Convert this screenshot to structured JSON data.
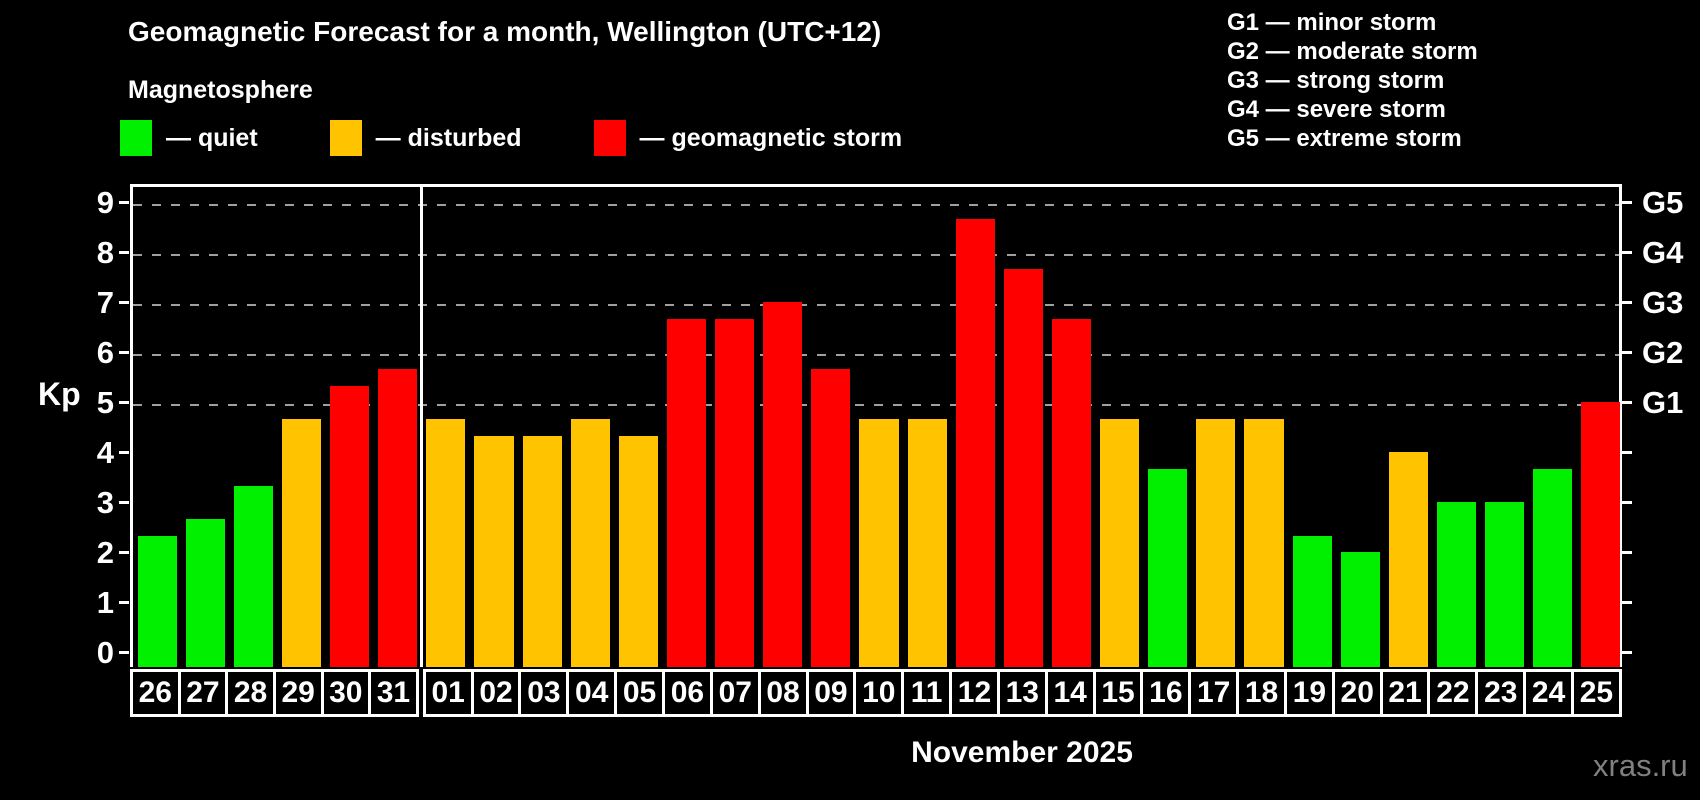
{
  "chart_data": {
    "type": "bar",
    "title": "Geomagnetic Forecast for a month, Wellington (UTC+12)",
    "subtitle": "Magnetosphere",
    "ylabel": "Kp",
    "month_label": "November 2025",
    "watermark": "xras.ru",
    "ylim": [
      0,
      9
    ],
    "yticks": [
      0,
      1,
      2,
      3,
      4,
      5,
      6,
      7,
      8,
      9
    ],
    "grid_levels": [
      5,
      6,
      7,
      8,
      9
    ],
    "grid_style": "dashed",
    "right_axis_labels": [
      {
        "kp": 5,
        "label": "G1"
      },
      {
        "kp": 6,
        "label": "G2"
      },
      {
        "kp": 7,
        "label": "G3"
      },
      {
        "kp": 8,
        "label": "G4"
      },
      {
        "kp": 9,
        "label": "G5"
      }
    ],
    "g_legend": [
      "G1 — minor storm",
      "G2 — moderate storm",
      "G3 — strong storm",
      "G4 — severe storm",
      "G5 — extreme storm"
    ],
    "legend": [
      {
        "status": "quiet",
        "label": "— quiet"
      },
      {
        "status": "disturbed",
        "label": "— disturbed"
      },
      {
        "status": "storm",
        "label": "— geomagnetic storm"
      }
    ],
    "colors": {
      "quiet": "#00f000",
      "disturbed": "#ffc300",
      "storm": "#ff0000",
      "grid": "#a0a0a0",
      "frame": "#ffffff",
      "watermark": "#808080"
    },
    "month_boundary_after_day": "31",
    "days": [
      {
        "day": "26",
        "kp": 2.33,
        "status": "quiet"
      },
      {
        "day": "27",
        "kp": 2.67,
        "status": "quiet"
      },
      {
        "day": "28",
        "kp": 3.33,
        "status": "quiet"
      },
      {
        "day": "29",
        "kp": 4.67,
        "status": "disturbed"
      },
      {
        "day": "30",
        "kp": 5.33,
        "status": "storm"
      },
      {
        "day": "31",
        "kp": 5.67,
        "status": "storm"
      },
      {
        "day": "01",
        "kp": 4.67,
        "status": "disturbed"
      },
      {
        "day": "02",
        "kp": 4.33,
        "status": "disturbed"
      },
      {
        "day": "03",
        "kp": 4.33,
        "status": "disturbed"
      },
      {
        "day": "04",
        "kp": 4.67,
        "status": "disturbed"
      },
      {
        "day": "05",
        "kp": 4.33,
        "status": "disturbed"
      },
      {
        "day": "06",
        "kp": 6.67,
        "status": "storm"
      },
      {
        "day": "07",
        "kp": 6.67,
        "status": "storm"
      },
      {
        "day": "08",
        "kp": 7.0,
        "status": "storm"
      },
      {
        "day": "09",
        "kp": 5.67,
        "status": "storm"
      },
      {
        "day": "10",
        "kp": 4.67,
        "status": "disturbed"
      },
      {
        "day": "11",
        "kp": 4.67,
        "status": "disturbed"
      },
      {
        "day": "12",
        "kp": 8.67,
        "status": "storm"
      },
      {
        "day": "13",
        "kp": 7.67,
        "status": "storm"
      },
      {
        "day": "14",
        "kp": 6.67,
        "status": "storm"
      },
      {
        "day": "15",
        "kp": 4.67,
        "status": "disturbed"
      },
      {
        "day": "16",
        "kp": 3.67,
        "status": "quiet"
      },
      {
        "day": "17",
        "kp": 4.67,
        "status": "disturbed"
      },
      {
        "day": "18",
        "kp": 4.67,
        "status": "disturbed"
      },
      {
        "day": "19",
        "kp": 2.33,
        "status": "quiet"
      },
      {
        "day": "20",
        "kp": 2.0,
        "status": "quiet"
      },
      {
        "day": "21",
        "kp": 4.0,
        "status": "disturbed"
      },
      {
        "day": "22",
        "kp": 3.0,
        "status": "quiet"
      },
      {
        "day": "23",
        "kp": 3.0,
        "status": "quiet"
      },
      {
        "day": "24",
        "kp": 3.67,
        "status": "quiet"
      },
      {
        "day": "25",
        "kp": 5.0,
        "status": "storm"
      }
    ]
  }
}
